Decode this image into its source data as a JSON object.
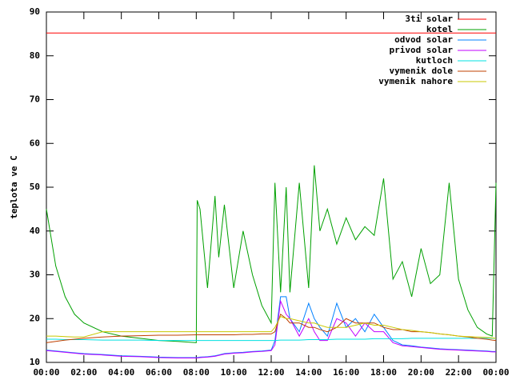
{
  "chart_data": {
    "type": "line",
    "y_label": "teplota ve C",
    "x": [
      0,
      0.5,
      1,
      1.5,
      2,
      3,
      4,
      5,
      6,
      7,
      8,
      8.05,
      8.2,
      8.6,
      9,
      9.2,
      9.5,
      10,
      10.5,
      11,
      11.5,
      12,
      12.2,
      12.5,
      12.8,
      13,
      13.5,
      14,
      14.3,
      14.6,
      15,
      15.5,
      16,
      16.5,
      17,
      17.5,
      18,
      18.5,
      19,
      19.5,
      20,
      20.5,
      21,
      21.5,
      22,
      22.5,
      23,
      23.5,
      23.8,
      24
    ],
    "xlim": [
      0,
      24
    ],
    "xticks": [
      {
        "value": 0,
        "label": "00:00"
      },
      {
        "value": 2,
        "label": "02:00"
      },
      {
        "value": 4,
        "label": "04:00"
      },
      {
        "value": 6,
        "label": "06:00"
      },
      {
        "value": 8,
        "label": "08:00"
      },
      {
        "value": 10,
        "label": "10:00"
      },
      {
        "value": 12,
        "label": "12:00"
      },
      {
        "value": 14,
        "label": "14:00"
      },
      {
        "value": 16,
        "label": "16:00"
      },
      {
        "value": 18,
        "label": "18:00"
      },
      {
        "value": 20,
        "label": "20:00"
      },
      {
        "value": 22,
        "label": "22:00"
      },
      {
        "value": 24,
        "label": "00:00"
      }
    ],
    "ylim": [
      10,
      90
    ],
    "yticks": [
      10,
      20,
      30,
      40,
      50,
      60,
      70,
      80,
      90
    ],
    "grid": false,
    "legend": "top-right",
    "series": [
      {
        "name": "3ti solar",
        "color": "#ff0000",
        "values": [
          85.2,
          85.2,
          85.2,
          85.2,
          85.2,
          85.2,
          85.2,
          85.2,
          85.2,
          85.2,
          85.2,
          85.2,
          85.2,
          85.2,
          85.2,
          85.2,
          85.2,
          85.2,
          85.2,
          85.2,
          85.2,
          85.2,
          85.2,
          85.2,
          85.2,
          85.2,
          85.2,
          85.2,
          85.2,
          85.2,
          85.2,
          85.2,
          85.2,
          85.2,
          85.2,
          85.2,
          85.2,
          85.2,
          85.2,
          85.2,
          85.2,
          85.2,
          85.2,
          85.2,
          85.2,
          85.2,
          85.2,
          85.2,
          85.2,
          85.2
        ]
      },
      {
        "name": "kotel",
        "color": "#00a000",
        "values": [
          45,
          32,
          25,
          21,
          19,
          17,
          16,
          15.5,
          15,
          14.8,
          14.5,
          47,
          45,
          27,
          48,
          34,
          46,
          27,
          40,
          30,
          23,
          19,
          51,
          26,
          50,
          26,
          51,
          27,
          55,
          40,
          45,
          37,
          43,
          38,
          41,
          39,
          52,
          29,
          33,
          25,
          36,
          28,
          30,
          51,
          29,
          22,
          18,
          16.5,
          16,
          51
        ]
      },
      {
        "name": "odvod solar",
        "color": "#0080ff",
        "values": [
          12.8,
          12.6,
          12.4,
          12.2,
          12,
          11.8,
          11.5,
          11.4,
          11.2,
          11.1,
          11.1,
          11.1,
          11.2,
          11.3,
          11.5,
          11.7,
          12,
          12.2,
          12.3,
          12.5,
          12.6,
          12.8,
          15,
          25,
          25,
          20,
          17,
          23.5,
          20,
          18,
          16,
          23.5,
          18,
          20,
          17,
          21,
          18,
          15,
          14,
          13.8,
          13.5,
          13.3,
          13.1,
          13,
          12.9,
          12.8,
          12.7,
          12.6,
          12.5,
          12.5
        ]
      },
      {
        "name": "privod solar",
        "color": "#c000ff",
        "values": [
          12.7,
          12.5,
          12.3,
          12.1,
          11.9,
          11.7,
          11.4,
          11.3,
          11.1,
          11,
          11,
          11,
          11.1,
          11.2,
          11.4,
          11.6,
          11.9,
          12.1,
          12.2,
          12.4,
          12.5,
          12.7,
          14,
          24,
          21,
          20,
          16,
          20,
          17,
          15,
          15,
          20,
          19,
          16,
          19,
          17,
          17,
          14.5,
          13.8,
          13.6,
          13.4,
          13.2,
          13,
          12.9,
          12.8,
          12.7,
          12.6,
          12.5,
          12.4,
          12.4
        ]
      },
      {
        "name": "kutloch",
        "color": "#00e0e0",
        "values": [
          15.3,
          15.3,
          15.2,
          15.2,
          15.2,
          15.1,
          15.1,
          15.1,
          15,
          15,
          15,
          15,
          15,
          15,
          15,
          15,
          15,
          15,
          15,
          15,
          15,
          15,
          15,
          15.1,
          15.1,
          15.1,
          15.1,
          15.2,
          15.2,
          15.2,
          15.2,
          15.3,
          15.3,
          15.3,
          15.3,
          15.4,
          15.4,
          15.4,
          15.4,
          15.5,
          15.5,
          15.5,
          15.5,
          15.5,
          15.5,
          15.5,
          15.5,
          15.5,
          15.5,
          15.5
        ]
      },
      {
        "name": "vymenik dole",
        "color": "#c04000",
        "values": [
          14.5,
          14.8,
          15.1,
          15.3,
          15.5,
          15.8,
          16,
          16.1,
          16.2,
          16.2,
          16.3,
          16.3,
          16.3,
          16.3,
          16.3,
          16.3,
          16.3,
          16.3,
          16.4,
          16.4,
          16.5,
          16.5,
          17,
          21,
          20,
          19,
          19,
          18,
          18,
          17.5,
          17,
          18,
          20,
          19,
          19,
          19,
          18,
          17.5,
          17.5,
          17,
          17,
          16.8,
          16.5,
          16.3,
          16,
          15.8,
          15.5,
          15.3,
          15.1,
          15
        ]
      },
      {
        "name": "vymenik nahore",
        "color": "#c8c800",
        "values": [
          16,
          16,
          15.9,
          15.8,
          15.8,
          17,
          17,
          17,
          17,
          17,
          17,
          17,
          17,
          17,
          17,
          17,
          17,
          17,
          17,
          17,
          17,
          17,
          18,
          20.5,
          20,
          20,
          19.5,
          19,
          19,
          18.5,
          18,
          18,
          18,
          18.5,
          19,
          18.5,
          18.5,
          18,
          17.5,
          17.3,
          17,
          16.8,
          16.5,
          16.3,
          16,
          15.9,
          15.8,
          15.7,
          15.6,
          15.5
        ]
      }
    ]
  }
}
